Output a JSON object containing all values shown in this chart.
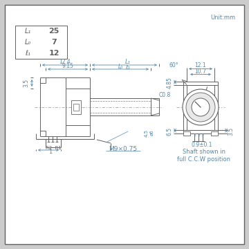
{
  "bg_outer": "#cccccc",
  "bg_inner": "#ffffff",
  "line_color": "#606060",
  "dim_color": "#5588aa",
  "text_color": "#444444",
  "title": "Unit:mm",
  "table_rows": [
    [
      "L₁",
      "25"
    ],
    [
      "L₀",
      "7"
    ],
    [
      "ℓ₁",
      "12"
    ]
  ],
  "shaft_label": "M9×0.75",
  "ccw_text": "Shaft shown in\nfull C.C.W position"
}
